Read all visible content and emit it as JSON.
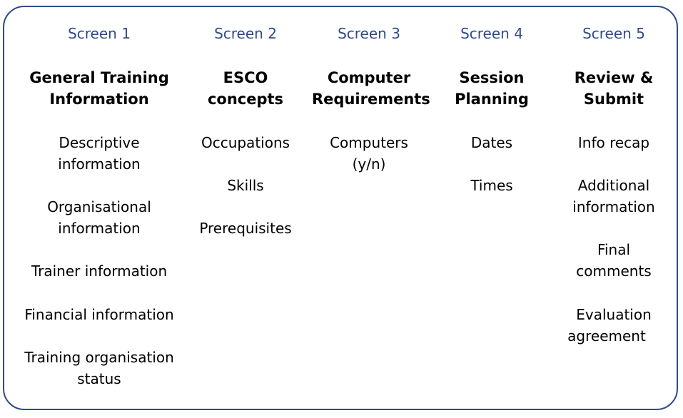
{
  "colors": {
    "frame_border": "#2f4a8a",
    "screen_label": "#2f4a8a",
    "text": "#000000"
  },
  "columns": [
    {
      "screen": "Screen 1",
      "title": [
        "General Training",
        "Information"
      ],
      "items": [
        [
          "Descriptive",
          "information"
        ],
        [
          "Organisational",
          "information"
        ],
        [
          "Trainer information"
        ],
        [
          "Financial information"
        ],
        [
          "Training organisation",
          "status"
        ]
      ]
    },
    {
      "screen": "Screen 2",
      "title": [
        "ESCO",
        "concepts"
      ],
      "items": [
        [
          "Occupations"
        ],
        [
          "Skills"
        ],
        [
          "Prerequisites"
        ]
      ]
    },
    {
      "screen": "Screen 3",
      "title": [
        "Computer",
        "Requirements"
      ],
      "items": [
        [
          "Computers",
          "(y/n)"
        ]
      ]
    },
    {
      "screen": "Screen 4",
      "title": [
        "Session",
        "Planning"
      ],
      "items": [
        [
          "Dates"
        ],
        [
          "Times"
        ]
      ]
    },
    {
      "screen": "Screen 5",
      "title": [
        "Review &",
        "Submit"
      ],
      "items": [
        [
          "Info recap"
        ],
        [
          "Additional",
          "information"
        ],
        [
          "Final",
          "comments"
        ],
        [
          "Evaluation",
          "agreement"
        ]
      ]
    }
  ]
}
